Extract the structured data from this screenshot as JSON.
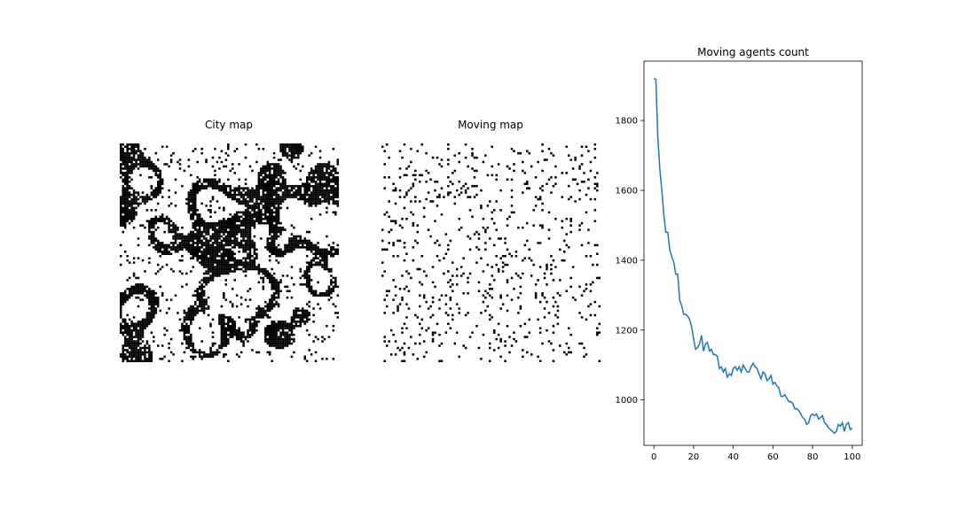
{
  "chart_data": [
    {
      "type": "heatmap",
      "title": "City map",
      "grid_size": [
        100,
        100
      ],
      "colors": {
        "occupied": "#000000",
        "empty": "#ffffff"
      },
      "axes_visible": false
    },
    {
      "type": "heatmap",
      "title": "Moving map",
      "grid_size": [
        100,
        100
      ],
      "colors": {
        "moving": "#000000",
        "empty": "#ffffff"
      },
      "axes_visible": false
    },
    {
      "type": "line",
      "title": "Moving agents count",
      "xlabel": "",
      "ylabel": "",
      "xlim": [
        -5,
        105
      ],
      "ylim": [
        870,
        1970
      ],
      "xticks": [
        0,
        20,
        40,
        60,
        80,
        100
      ],
      "yticks": [
        1000,
        1200,
        1400,
        1600,
        1800
      ],
      "color": "#1f77b4",
      "grid": false,
      "series": [
        {
          "x": [
            0,
            1,
            2,
            3,
            4,
            5,
            6,
            7,
            8,
            9,
            10,
            11,
            12,
            13,
            14,
            15,
            16,
            17,
            18,
            19,
            20,
            21,
            22,
            23,
            24,
            25,
            26,
            27,
            28,
            29,
            30,
            31,
            32,
            33,
            34,
            35,
            36,
            37,
            38,
            39,
            40,
            41,
            42,
            43,
            44,
            45,
            46,
            47,
            48,
            49,
            50,
            51,
            52,
            53,
            54,
            55,
            56,
            57,
            58,
            59,
            60,
            61,
            62,
            63,
            64,
            65,
            66,
            67,
            68,
            69,
            70,
            71,
            72,
            73,
            74,
            75,
            76,
            77,
            78,
            79,
            80,
            81,
            82,
            83,
            84,
            85,
            86,
            87,
            88,
            89,
            90,
            91,
            92,
            93,
            94,
            95,
            96,
            97,
            98,
            99,
            100
          ],
          "values": [
            1920,
            1918,
            1750,
            1660,
            1600,
            1530,
            1480,
            1480,
            1430,
            1410,
            1395,
            1360,
            1360,
            1285,
            1270,
            1245,
            1245,
            1240,
            1230,
            1210,
            1175,
            1145,
            1150,
            1160,
            1185,
            1140,
            1160,
            1165,
            1140,
            1145,
            1130,
            1130,
            1125,
            1090,
            1095,
            1080,
            1090,
            1065,
            1075,
            1070,
            1090,
            1095,
            1085,
            1095,
            1080,
            1100,
            1090,
            1080,
            1080,
            1095,
            1105,
            1095,
            1090,
            1075,
            1060,
            1080,
            1075,
            1055,
            1060,
            1070,
            1045,
            1050,
            1040,
            1035,
            1010,
            1010,
            1015,
            1005,
            995,
            995,
            990,
            975,
            975,
            970,
            960,
            950,
            945,
            930,
            935,
            955,
            960,
            955,
            960,
            945,
            950,
            955,
            935,
            930,
            920,
            915,
            910,
            905,
            910,
            930,
            925,
            935,
            910,
            930,
            935,
            915,
            920
          ]
        }
      ]
    }
  ]
}
